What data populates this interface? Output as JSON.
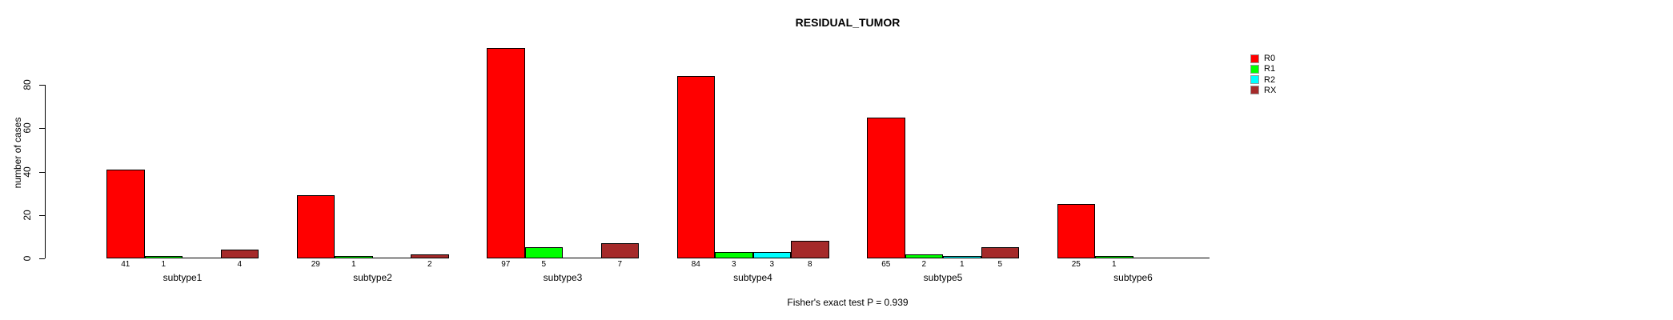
{
  "title": "RESIDUAL_TUMOR",
  "annotation": "Fisher's exact test P = 0.939",
  "chart_data": {
    "type": "bar",
    "title": "RESIDUAL_TUMOR",
    "xlabel": "",
    "ylabel": "number of cases",
    "categories": [
      "subtype1",
      "subtype2",
      "subtype3",
      "subtype4",
      "subtype5",
      "subtype6"
    ],
    "series": [
      {
        "name": "R0",
        "color": "#FF0000",
        "values": [
          41,
          29,
          97,
          84,
          65,
          25
        ]
      },
      {
        "name": "R1",
        "color": "#00FF00",
        "values": [
          1,
          1,
          5,
          3,
          2,
          1
        ]
      },
      {
        "name": "R2",
        "color": "#00FFFF",
        "values": [
          0,
          0,
          0,
          3,
          1,
          0
        ]
      },
      {
        "name": "RX",
        "color": "#A52A2A",
        "values": [
          4,
          2,
          7,
          8,
          5,
          0
        ]
      }
    ],
    "yticks": [
      0,
      20,
      40,
      60,
      80
    ],
    "ylim": [
      0,
      97
    ],
    "grid": false,
    "legend_position": "top-right",
    "bar_value_labels": "value printed under each bar, zeros omitted (zero bars drawn as flat line)",
    "annotation": "Fisher's exact test P = 0.939"
  }
}
